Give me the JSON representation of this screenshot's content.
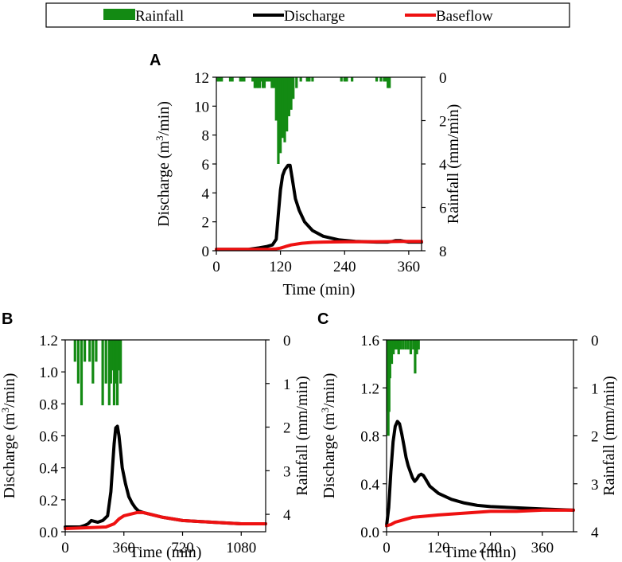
{
  "legend": {
    "items": [
      {
        "label": "Rainfall",
        "color": "#138a13",
        "kind": "bar"
      },
      {
        "label": "Discharge",
        "color": "#000000",
        "kind": "line"
      },
      {
        "label": "Baseflow",
        "color": "#ee1111",
        "kind": "line"
      }
    ]
  },
  "colors": {
    "rain": "#138a13",
    "discharge": "#000000",
    "baseflow": "#ee1111"
  },
  "chart_data": [
    {
      "panel": "A",
      "type": "line",
      "xlabel": "Time (min)",
      "ylabel_pre": "Discharge (m",
      "ylabel_sup": "3",
      "ylabel_post": "/min)",
      "y2label": "Rainfall (mm/min)",
      "xlim": [
        0,
        384
      ],
      "ylim": [
        0,
        12
      ],
      "y2lim": [
        0,
        8
      ],
      "y2_inverted": true,
      "xticks": [
        0,
        120,
        240,
        360
      ],
      "yticks": [
        0,
        2,
        4,
        6,
        8,
        10,
        12
      ],
      "y2ticks": [
        0,
        2,
        4,
        6,
        8
      ],
      "series": [
        {
          "name": "Discharge",
          "x": [
            0,
            60,
            80,
            95,
            105,
            112,
            116,
            120,
            124,
            128,
            134,
            138,
            142,
            148,
            155,
            165,
            180,
            200,
            230,
            260,
            300,
            320,
            330,
            335,
            345,
            360,
            384
          ],
          "y": [
            0.1,
            0.1,
            0.2,
            0.3,
            0.4,
            0.8,
            2.5,
            4.2,
            5.2,
            5.6,
            5.9,
            5.9,
            5.0,
            3.6,
            2.8,
            2.0,
            1.4,
            1.0,
            0.75,
            0.65,
            0.6,
            0.6,
            0.65,
            0.7,
            0.7,
            0.6,
            0.6
          ]
        },
        {
          "name": "Baseflow",
          "x": [
            0,
            100,
            110,
            120,
            130,
            140,
            160,
            180,
            200,
            240,
            300,
            360,
            384
          ],
          "y": [
            0.1,
            0.1,
            0.12,
            0.18,
            0.3,
            0.4,
            0.52,
            0.58,
            0.6,
            0.62,
            0.63,
            0.65,
            0.65
          ]
        },
        {
          "name": "Rainfall",
          "x": [
            2,
            6,
            10,
            26,
            30,
            45,
            48,
            52,
            68,
            72,
            75,
            78,
            81,
            84,
            87,
            90,
            93,
            96,
            100,
            104,
            108,
            112,
            116,
            120,
            124,
            128,
            132,
            136,
            140,
            144,
            150,
            158,
            170,
            174,
            180,
            234,
            240,
            244,
            254,
            300,
            308,
            314,
            318,
            321,
            324
          ],
          "y": [
            0.2,
            0.2,
            0.2,
            0.2,
            0.2,
            0.2,
            0.2,
            0.2,
            0.2,
            0.5,
            0.5,
            0.5,
            0.5,
            0.2,
            0.5,
            0.5,
            0.2,
            0.2,
            0.2,
            0.5,
            0.5,
            2.0,
            4.0,
            3.5,
            2.8,
            3.0,
            2.5,
            1.8,
            1.5,
            1.0,
            0.5,
            0.2,
            0.2,
            0.2,
            0.2,
            0.2,
            0.2,
            0.2,
            0.2,
            0.2,
            0.2,
            0.2,
            0.2,
            0.5,
            0.5
          ]
        }
      ]
    },
    {
      "panel": "B",
      "type": "line",
      "xlabel": "Time (min)",
      "ylabel_pre": "Discharge (m",
      "ylabel_sup": "3",
      "ylabel_post": "/min)",
      "y2label": "Rainfall (mm/min)",
      "xlim": [
        0,
        1230
      ],
      "ylim": [
        0,
        1.2
      ],
      "y2lim": [
        0,
        4.4
      ],
      "y2_inverted": true,
      "xticks": [
        0,
        360,
        720,
        1080
      ],
      "yticks": [
        0.0,
        0.2,
        0.4,
        0.6,
        0.8,
        1.0,
        1.2
      ],
      "y2ticks": [
        0,
        1,
        2,
        3,
        4
      ],
      "series": [
        {
          "name": "Discharge",
          "x": [
            0,
            90,
            120,
            140,
            160,
            200,
            230,
            240,
            260,
            280,
            290,
            300,
            310,
            320,
            330,
            340,
            350,
            370,
            390,
            410,
            430,
            450,
            480,
            520,
            600,
            720,
            900,
            1080,
            1230
          ],
          "y": [
            0.03,
            0.03,
            0.04,
            0.05,
            0.07,
            0.06,
            0.07,
            0.08,
            0.1,
            0.25,
            0.4,
            0.55,
            0.65,
            0.66,
            0.6,
            0.5,
            0.4,
            0.3,
            0.22,
            0.18,
            0.15,
            0.13,
            0.12,
            0.11,
            0.09,
            0.07,
            0.06,
            0.05,
            0.05
          ]
        },
        {
          "name": "Baseflow",
          "x": [
            0,
            250,
            300,
            330,
            360,
            400,
            440,
            480,
            520,
            600,
            720,
            900,
            1080,
            1230
          ],
          "y": [
            0.02,
            0.03,
            0.05,
            0.08,
            0.1,
            0.11,
            0.12,
            0.12,
            0.11,
            0.09,
            0.07,
            0.06,
            0.05,
            0.05
          ]
        },
        {
          "name": "Rainfall",
          "x": [
            60,
            80,
            100,
            120,
            150,
            170,
            190,
            230,
            250,
            270,
            280,
            290,
            300,
            310,
            320,
            330,
            340
          ],
          "y": [
            0.5,
            1.0,
            1.5,
            0.5,
            0.5,
            1.0,
            0.5,
            1.5,
            1.0,
            1.5,
            1.0,
            0.7,
            1.5,
            1.0,
            1.5,
            0.7,
            1.0
          ]
        }
      ]
    },
    {
      "panel": "C",
      "type": "line",
      "xlabel": "Time (min)",
      "ylabel_pre": "Discharge (m",
      "ylabel_sup": "3",
      "ylabel_post": "/min)",
      "y2label": "Rainfall (mm/min)",
      "xlim": [
        0,
        432
      ],
      "ylim": [
        0,
        1.6
      ],
      "y2lim": [
        0,
        4
      ],
      "y2_inverted": true,
      "xticks": [
        0,
        120,
        240,
        360
      ],
      "yticks": [
        0.0,
        0.4,
        0.8,
        1.2,
        1.6
      ],
      "y2ticks": [
        0,
        1,
        2,
        3,
        4
      ],
      "series": [
        {
          "name": "Discharge",
          "x": [
            0,
            5,
            10,
            15,
            20,
            25,
            30,
            35,
            40,
            45,
            50,
            55,
            60,
            65,
            70,
            75,
            80,
            85,
            90,
            100,
            120,
            150,
            180,
            210,
            240,
            300,
            360,
            432
          ],
          "y": [
            0.05,
            0.2,
            0.5,
            0.75,
            0.88,
            0.92,
            0.9,
            0.82,
            0.72,
            0.62,
            0.55,
            0.5,
            0.45,
            0.42,
            0.44,
            0.47,
            0.48,
            0.47,
            0.44,
            0.38,
            0.32,
            0.27,
            0.24,
            0.22,
            0.21,
            0.2,
            0.19,
            0.18
          ]
        },
        {
          "name": "Baseflow",
          "x": [
            0,
            10,
            20,
            40,
            60,
            90,
            120,
            160,
            200,
            240,
            300,
            360,
            432
          ],
          "y": [
            0.05,
            0.06,
            0.08,
            0.1,
            0.12,
            0.13,
            0.14,
            0.15,
            0.16,
            0.17,
            0.17,
            0.18,
            0.18
          ]
        },
        {
          "name": "Rainfall",
          "x": [
            2,
            4,
            6,
            8,
            12,
            16,
            20,
            24,
            28,
            32,
            38,
            44,
            50,
            56,
            62,
            66,
            70,
            74
          ],
          "y": [
            1.5,
            2.0,
            1.5,
            0.8,
            0.5,
            0.3,
            0.2,
            0.2,
            0.3,
            0.2,
            0.2,
            0.2,
            0.2,
            0.3,
            0.2,
            0.7,
            0.3,
            0.2
          ]
        }
      ]
    }
  ]
}
